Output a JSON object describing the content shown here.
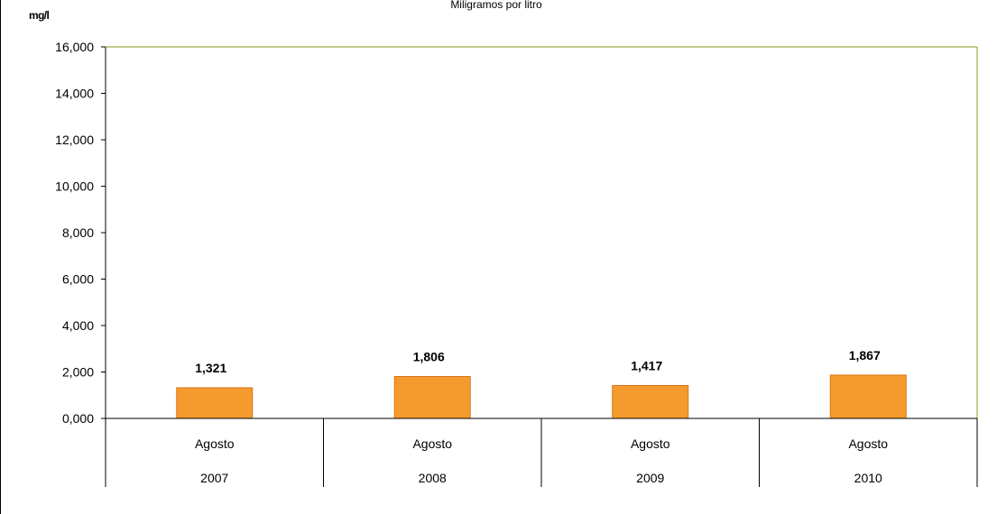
{
  "chart": {
    "title": "Miligramos  por  litro",
    "unit": "mg/l"
  },
  "colors": {
    "bar_fill": "#f59a2c",
    "bar_stroke": "#d9761c",
    "plot_border": "#8a9a1a",
    "axis": "#000000"
  },
  "chart_data": {
    "type": "bar",
    "title": "Miligramos  por  litro",
    "ylabel": "mg/l",
    "xlabel": "",
    "categories": [
      {
        "month": "Agosto",
        "year": "2007"
      },
      {
        "month": "Agosto",
        "year": "2008"
      },
      {
        "month": "Agosto",
        "year": "2009"
      },
      {
        "month": "Agosto",
        "year": "2010"
      }
    ],
    "values": [
      1.321,
      1.806,
      1.417,
      1.867
    ],
    "value_labels": [
      "1,321",
      "1,806",
      "1,417",
      "1,867"
    ],
    "ylim": [
      0,
      16
    ],
    "yticks": [
      0,
      2,
      4,
      6,
      8,
      10,
      12,
      14,
      16
    ],
    "ytick_labels": [
      "0,000",
      "2,000",
      "4,000",
      "6,000",
      "8,000",
      "10,000",
      "12,000",
      "14,000",
      "16,000"
    ],
    "grid": false,
    "legend": "none"
  }
}
